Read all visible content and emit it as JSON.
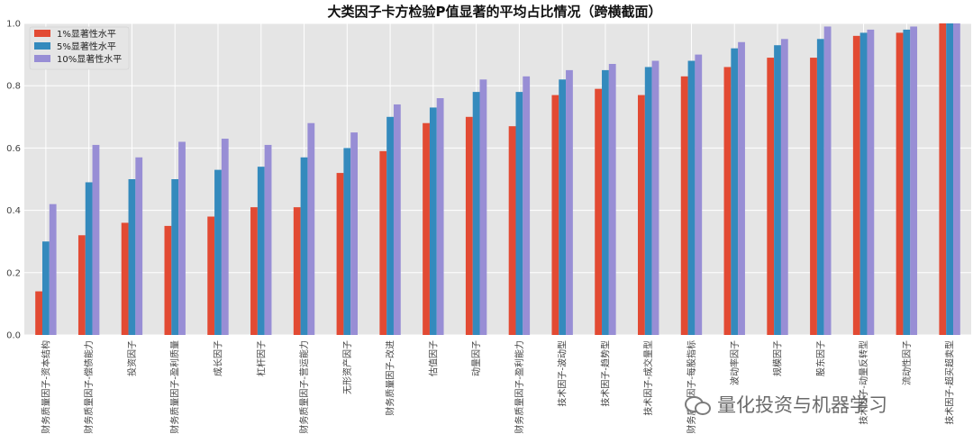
{
  "chart_data": {
    "type": "bar",
    "title": "大类因子卡方检验P值显著的平均占比情况（跨横截面）",
    "xlabel": "",
    "ylabel": "",
    "ylim": [
      0,
      1.0
    ],
    "yticks": [
      "0.0",
      "0.2",
      "0.4",
      "0.6",
      "0.8",
      "1.0"
    ],
    "grid": true,
    "legend": "top-left",
    "categories": [
      "财务质量因子-资本结构",
      "财务质量因子-偿债能力",
      "投资因子",
      "财务质量因子-盈利质量",
      "成长因子",
      "杠杆因子",
      "财务质量因子-营运能力",
      "无形资产因子",
      "财务质量因子-改进",
      "估值因子",
      "动量因子",
      "财务质量因子-盈利能力",
      "技术因子-波动型",
      "技术因子-趋势型",
      "技术因子-成交量型",
      "财务质量因子-每股指标",
      "波动率因子",
      "规模因子",
      "股东因子",
      "技术因子-动量反转型",
      "流动性因子",
      "技术因子-超买超卖型"
    ],
    "series": [
      {
        "name": "1%显著性水平",
        "color": "#e24a33",
        "values": [
          0.14,
          0.32,
          0.36,
          0.35,
          0.38,
          0.41,
          0.41,
          0.52,
          0.59,
          0.68,
          0.7,
          0.67,
          0.77,
          0.79,
          0.77,
          0.83,
          0.86,
          0.89,
          0.89,
          0.96,
          0.97,
          1.0
        ]
      },
      {
        "name": "5%显著性水平",
        "color": "#348abd",
        "values": [
          0.3,
          0.49,
          0.5,
          0.5,
          0.53,
          0.54,
          0.57,
          0.6,
          0.7,
          0.73,
          0.78,
          0.78,
          0.82,
          0.85,
          0.86,
          0.88,
          0.92,
          0.93,
          0.95,
          0.97,
          0.98,
          1.0
        ]
      },
      {
        "name": "10%显著性水平",
        "color": "#988ed5",
        "values": [
          0.42,
          0.61,
          0.57,
          0.62,
          0.63,
          0.61,
          0.68,
          0.65,
          0.74,
          0.76,
          0.82,
          0.83,
          0.85,
          0.87,
          0.88,
          0.9,
          0.94,
          0.95,
          0.99,
          0.98,
          0.99,
          1.0
        ]
      }
    ]
  },
  "watermark": "量化投资与机器学习"
}
